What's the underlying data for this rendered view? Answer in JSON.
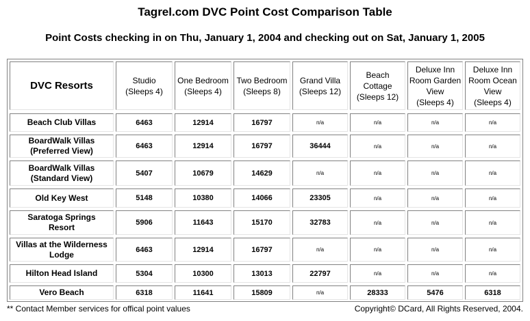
{
  "title": "Tagrel.com DVC Point Cost Comparison Table",
  "subtitle": "Point Costs checking in on Thu, January 1, 2004 and checking out on Sat, January 1, 2005",
  "table": {
    "corner_label": "DVC Resorts",
    "columns": [
      "Studio\n(Sleeps 4)",
      "One Bedroom\n(Sleeps 4)",
      "Two Bedroom\n(Sleeps 8)",
      "Grand Villa\n(Sleeps 12)",
      "Beach\nCottage\n(Sleeps 12)",
      "Deluxe Inn\nRoom Garden\nView\n(Sleeps 4)",
      "Deluxe Inn\nRoom Ocean\nView\n(Sleeps 4)"
    ],
    "rows": [
      {
        "resort": "Beach Club Villas",
        "values": [
          "6463",
          "12914",
          "16797",
          "n/a",
          "n/a",
          "n/a",
          "n/a"
        ]
      },
      {
        "resort": "BoardWalk Villas\n(Preferred View)",
        "values": [
          "6463",
          "12914",
          "16797",
          "36444",
          "n/a",
          "n/a",
          "n/a"
        ]
      },
      {
        "resort": "BoardWalk Villas\n(Standard View)",
        "values": [
          "5407",
          "10679",
          "14629",
          "n/a",
          "n/a",
          "n/a",
          "n/a"
        ]
      },
      {
        "resort": "Old Key West",
        "values": [
          "5148",
          "10380",
          "14066",
          "23305",
          "n/a",
          "n/a",
          "n/a"
        ]
      },
      {
        "resort": "Saratoga Springs\nResort",
        "values": [
          "5906",
          "11643",
          "15170",
          "32783",
          "n/a",
          "n/a",
          "n/a"
        ]
      },
      {
        "resort": "Villas at the Wilderness\nLodge",
        "values": [
          "6463",
          "12914",
          "16797",
          "n/a",
          "n/a",
          "n/a",
          "n/a"
        ]
      },
      {
        "resort": "Hilton Head Island",
        "values": [
          "5304",
          "10300",
          "13013",
          "22797",
          "n/a",
          "n/a",
          "n/a"
        ]
      },
      {
        "resort": "Vero Beach",
        "values": [
          "6318",
          "11641",
          "15809",
          "n/a",
          "28333",
          "5476",
          "6318"
        ]
      }
    ]
  },
  "footer": {
    "note": "** Contact Member services for offical point values",
    "copyright": "Copyright© DCard, All Rights Reserved, 2004."
  }
}
